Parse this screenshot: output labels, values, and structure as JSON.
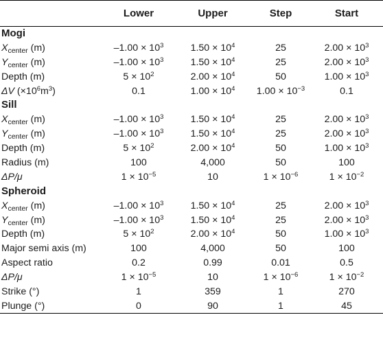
{
  "headers": [
    "",
    "Lower",
    "Upper",
    "Step",
    "Start"
  ],
  "sections": [
    {
      "title": "Mogi",
      "rows": [
        {
          "label_main": "X",
          "label_sub": "center",
          "label_rest": " (m)",
          "values": [
            "–1.00 × 10",
            "1.50 × 10",
            "25",
            "2.00 × 10"
          ],
          "exps": [
            "3",
            "4",
            "",
            "3"
          ]
        },
        {
          "label_main": "Y",
          "label_sub": "center",
          "label_rest": " (m)",
          "values": [
            "–1.00 × 10",
            "1.50 × 10",
            "25",
            "2.00 × 10"
          ],
          "exps": [
            "3",
            "4",
            "",
            "3"
          ]
        },
        {
          "label_main": "",
          "label_sub": "",
          "label_rest": "Depth (m)",
          "values": [
            "5 × 10",
            "2.00 × 10",
            "50",
            "1.00 × 10"
          ],
          "exps": [
            "2",
            "4",
            "",
            "3"
          ]
        },
        {
          "label_main": "ΔV",
          "label_sub": "",
          "label_rest": " (×10",
          "label_exp": "6",
          "label_tail": "m",
          "label_exp2": "3",
          "label_end": ")",
          "values": [
            "0.1",
            "1.00 × 10",
            "1.00 × 10",
            "0.1"
          ],
          "exps": [
            "",
            "4",
            "−3",
            ""
          ]
        }
      ]
    },
    {
      "title": "Sill",
      "rows": [
        {
          "label_main": "X",
          "label_sub": "center",
          "label_rest": " (m)",
          "values": [
            "–1.00 × 10",
            "1.50 × 10",
            "25",
            "2.00 × 10"
          ],
          "exps": [
            "3",
            "4",
            "",
            "3"
          ]
        },
        {
          "label_main": "Y",
          "label_sub": "center",
          "label_rest": " (m)",
          "values": [
            "–1.00 × 10",
            "1.50 × 10",
            "25",
            "2.00 × 10"
          ],
          "exps": [
            "3",
            "4",
            "",
            "3"
          ]
        },
        {
          "label_main": "",
          "label_sub": "",
          "label_rest": "Depth (m)",
          "values": [
            "5 × 10",
            "2.00 × 10",
            "50",
            "1.00 × 10"
          ],
          "exps": [
            "2",
            "4",
            "",
            "3"
          ]
        },
        {
          "label_main": "",
          "label_sub": "",
          "label_rest": "Radius (m)",
          "values": [
            "100",
            "4,000",
            "50",
            "100"
          ],
          "exps": [
            "",
            "",
            "",
            ""
          ]
        },
        {
          "label_main": "ΔP/μ",
          "label_sub": "",
          "label_rest": "",
          "values": [
            "1 × 10",
            "10",
            "1 × 10",
            "1 × 10"
          ],
          "exps": [
            "−5",
            "",
            "−6",
            "−2"
          ]
        }
      ]
    },
    {
      "title": "Spheroid",
      "rows": [
        {
          "label_main": "X",
          "label_sub": "center",
          "label_rest": " (m)",
          "values": [
            "–1.00 × 10",
            "1.50 × 10",
            "25",
            "2.00 × 10"
          ],
          "exps": [
            "3",
            "4",
            "",
            "3"
          ]
        },
        {
          "label_main": "Y",
          "label_sub": "center",
          "label_rest": " (m)",
          "values": [
            "–1.00 × 10",
            "1.50 × 10",
            "25",
            "2.00 × 10"
          ],
          "exps": [
            "3",
            "4",
            "",
            "3"
          ]
        },
        {
          "label_main": "",
          "label_sub": "",
          "label_rest": "Depth (m)",
          "values": [
            "5 × 10",
            "2.00 × 10",
            "50",
            "1.00 × 10"
          ],
          "exps": [
            "2",
            "4",
            "",
            "3"
          ]
        },
        {
          "label_main": "",
          "label_sub": "",
          "label_rest": "Major semi axis (m)",
          "values": [
            "100",
            "4,000",
            "50",
            "100"
          ],
          "exps": [
            "",
            "",
            "",
            ""
          ]
        },
        {
          "label_main": "",
          "label_sub": "",
          "label_rest": "Aspect ratio",
          "values": [
            "0.2",
            "0.99",
            "0.01",
            "0.5"
          ],
          "exps": [
            "",
            "",
            "",
            ""
          ]
        },
        {
          "label_main": "ΔP/μ",
          "label_sub": "",
          "label_rest": "",
          "values": [
            "1 × 10",
            "10",
            "1 × 10",
            "1 × 10"
          ],
          "exps": [
            "−5",
            "",
            "−6",
            "−2"
          ]
        },
        {
          "label_main": "",
          "label_sub": "",
          "label_rest": "Strike (°)",
          "values": [
            "1",
            "359",
            "1",
            "270"
          ],
          "exps": [
            "",
            "",
            "",
            ""
          ]
        },
        {
          "label_main": "",
          "label_sub": "",
          "label_rest": "Plunge (°)",
          "values": [
            "0",
            "90",
            "1",
            "45"
          ],
          "exps": [
            "",
            "",
            "",
            ""
          ]
        }
      ]
    }
  ]
}
